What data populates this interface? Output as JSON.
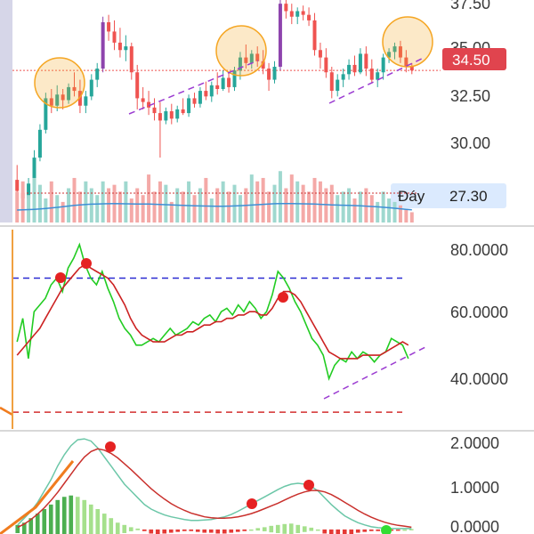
{
  "colors": {
    "up": "#26a69a",
    "down": "#ef5350",
    "price_line": "#ef5350",
    "ma": "#3d8fd6",
    "rsi": "#22cc22",
    "rsi_signal": "#cc2222",
    "macd": "#6cc7a8",
    "signal": "#c9302c",
    "trend": "#9b3bd1",
    "highlight": "#f5a623",
    "overbought": "#2b2bd1",
    "oversold": "#d32f2f",
    "current_badge": "#e0444e",
    "ma_badge": "#dbeafe"
  },
  "price_panel": {
    "ticks": [
      "37.50",
      "35.00",
      "32.50",
      "30.00"
    ],
    "current_price": "34.50",
    "ma_label": "Đáy",
    "ma_value": "27.30"
  },
  "rsi_panel": {
    "ticks": [
      "80.0000",
      "60.0000",
      "40.0000"
    ],
    "overbought": 70,
    "oversold": 30
  },
  "macd_panel": {
    "ticks": [
      "2.0000",
      "1.0000",
      "0.0000"
    ]
  },
  "chart_data": [
    {
      "type": "candlestick",
      "title": "",
      "ylim": [
        26.3,
        38.3
      ],
      "candles": [
        [
          28.6,
          29.4,
          27.0,
          28.0
        ],
        [
          27.9,
          28.4,
          27.2,
          27.6
        ],
        [
          27.6,
          28.7,
          27.0,
          28.4
        ],
        [
          28.3,
          30.2,
          28.2,
          29.8
        ],
        [
          29.8,
          31.6,
          29.6,
          31.3
        ],
        [
          31.3,
          33.3,
          31.1,
          33.0
        ],
        [
          33.0,
          33.5,
          32.2,
          32.6
        ],
        [
          32.6,
          33.7,
          32.3,
          33.2
        ],
        [
          33.2,
          33.5,
          32.4,
          32.9
        ],
        [
          32.9,
          33.8,
          32.7,
          33.6
        ],
        [
          33.6,
          34.4,
          33.1,
          33.4
        ],
        [
          33.4,
          34.0,
          32.2,
          32.6
        ],
        [
          32.6,
          33.4,
          32.2,
          33.1
        ],
        [
          33.1,
          34.3,
          32.9,
          34.0
        ],
        [
          34.0,
          34.9,
          33.6,
          34.6
        ],
        [
          34.6,
          37.4,
          34.4,
          37.1
        ],
        [
          37.1,
          37.5,
          36.1,
          36.6
        ],
        [
          36.6,
          37.2,
          35.6,
          36.0
        ],
        [
          36.0,
          36.8,
          35.2,
          35.6
        ],
        [
          35.6,
          36.4,
          35.0,
          35.8
        ],
        [
          35.8,
          36.0,
          34.0,
          34.4
        ],
        [
          34.4,
          34.8,
          32.4,
          33.0
        ],
        [
          33.0,
          33.6,
          32.4,
          32.8
        ],
        [
          32.8,
          33.4,
          32.1,
          32.5
        ],
        [
          32.5,
          33.0,
          31.8,
          32.2
        ],
        [
          32.2,
          32.8,
          29.8,
          31.8
        ],
        [
          31.8,
          32.5,
          31.6,
          32.3
        ],
        [
          32.3,
          32.7,
          31.6,
          31.9
        ],
        [
          31.9,
          32.6,
          31.7,
          32.4
        ],
        [
          32.4,
          33.0,
          32.1,
          32.2
        ],
        [
          32.2,
          33.2,
          32.0,
          33.0
        ],
        [
          33.0,
          33.3,
          32.5,
          32.7
        ],
        [
          32.7,
          33.6,
          32.5,
          33.4
        ],
        [
          33.4,
          33.9,
          32.9,
          33.1
        ],
        [
          33.1,
          33.9,
          32.8,
          33.7
        ],
        [
          33.7,
          34.4,
          33.2,
          33.5
        ],
        [
          33.5,
          34.5,
          33.4,
          34.1
        ],
        [
          34.1,
          34.4,
          33.3,
          33.6
        ],
        [
          33.6,
          34.7,
          33.4,
          34.5
        ],
        [
          34.5,
          35.5,
          34.0,
          35.2
        ],
        [
          35.2,
          35.9,
          34.6,
          34.9
        ],
        [
          34.9,
          35.6,
          34.6,
          35.4
        ],
        [
          35.4,
          35.8,
          34.7,
          35.0
        ],
        [
          35.0,
          35.6,
          34.3,
          34.6
        ],
        [
          34.6,
          34.9,
          33.4,
          34.0
        ],
        [
          34.0,
          35.0,
          33.8,
          34.7
        ],
        [
          34.7,
          38.3,
          34.5,
          38.1
        ],
        [
          38.1,
          38.4,
          37.3,
          37.7
        ],
        [
          37.7,
          38.1,
          37.0,
          37.4
        ],
        [
          37.4,
          37.9,
          37.0,
          37.7
        ],
        [
          37.7,
          38.0,
          37.2,
          37.5
        ],
        [
          37.5,
          37.9,
          36.9,
          37.2
        ],
        [
          37.2,
          37.6,
          35.3,
          35.6
        ],
        [
          35.6,
          36.0,
          34.6,
          35.2
        ],
        [
          35.2,
          35.7,
          34.1,
          34.4
        ],
        [
          34.4,
          34.7,
          33.0,
          33.4
        ],
        [
          33.4,
          34.3,
          33.1,
          34.0
        ],
        [
          34.0,
          34.6,
          33.6,
          34.3
        ],
        [
          34.3,
          35.1,
          34.0,
          34.8
        ],
        [
          34.8,
          35.3,
          34.2,
          34.4
        ],
        [
          34.4,
          35.7,
          34.3,
          35.4
        ],
        [
          35.4,
          35.8,
          34.2,
          34.6
        ],
        [
          34.6,
          35.1,
          33.8,
          34.0
        ],
        [
          34.0,
          34.6,
          33.6,
          34.4
        ],
        [
          34.4,
          35.4,
          34.0,
          35.2
        ],
        [
          35.2,
          35.7,
          34.9,
          35.5
        ],
        [
          35.5,
          36.0,
          35.1,
          35.8
        ],
        [
          35.8,
          36.1,
          34.9,
          35.2
        ],
        [
          35.2,
          35.6,
          34.4,
          34.7
        ],
        [
          34.7,
          34.9,
          34.3,
          34.5
        ]
      ],
      "current_price": 34.5
    },
    {
      "type": "bar",
      "title": "",
      "values": [
        9,
        12,
        8,
        13,
        11,
        7,
        12,
        8,
        6,
        10,
        13,
        9,
        12,
        10,
        8,
        12,
        10,
        11,
        9,
        12,
        7,
        10,
        8,
        14,
        9,
        12,
        11,
        6,
        10,
        9,
        12,
        8,
        10,
        13,
        7,
        10,
        12,
        9,
        11,
        8,
        10,
        14,
        12,
        13,
        9,
        11,
        15,
        10,
        14,
        12,
        11,
        9,
        13,
        12,
        10,
        11,
        8,
        9,
        10,
        7,
        9,
        10,
        8,
        6,
        9,
        7,
        6,
        5,
        4,
        3
      ],
      "moving_average": [
        14,
        14.3,
        14.5,
        14.8,
        15.2,
        15.8,
        16.4,
        17.0,
        17.8,
        18.5,
        19.2,
        19.8,
        20.3,
        20.6,
        20.8,
        21.0,
        21.1,
        21.2,
        21.1,
        21.0,
        20.9,
        20.8,
        20.8,
        20.7,
        20.5,
        20.3,
        20.0,
        19.7,
        19.5,
        19.3,
        19.0,
        18.8,
        18.6,
        18.5,
        18.4,
        18.3,
        18.3,
        18.4,
        18.6,
        18.9,
        19.2,
        19.6,
        20.0,
        20.4,
        20.8,
        21.1,
        21.3,
        21.3,
        21.2,
        21.1,
        21.0,
        20.9,
        20.7,
        20.4,
        20.1,
        19.8,
        19.6,
        19.4,
        19.2,
        19.0,
        18.7,
        18.4,
        18.0,
        17.6,
        17.1,
        16.6,
        16.0,
        15.4,
        14.8,
        14.2
      ],
      "label": "Đáy"
    },
    {
      "type": "line",
      "title": "",
      "ylim": [
        25,
        85
      ],
      "series": [
        {
          "values": [
            51,
            58,
            46,
            60,
            62,
            64,
            68,
            70,
            66,
            73,
            76,
            80,
            74,
            70,
            68,
            72,
            67,
            63,
            58,
            55,
            53,
            50,
            50,
            51,
            52,
            51,
            53,
            55,
            53,
            54,
            55,
            57,
            56,
            58,
            59,
            57,
            60,
            61,
            59,
            62,
            60,
            63,
            61,
            58,
            60,
            65,
            72,
            70,
            67,
            63,
            60,
            56,
            52,
            50,
            47,
            40,
            44,
            46,
            45,
            48,
            46,
            48,
            47,
            45,
            47,
            48,
            52,
            51,
            50,
            46
          ]
        },
        {
          "values": [
            47,
            49,
            51,
            53,
            55,
            58,
            61,
            64,
            67,
            69,
            71,
            73,
            74,
            73,
            72,
            71,
            70,
            68,
            65,
            62,
            58,
            55,
            53,
            52,
            51,
            51,
            51,
            52,
            53,
            53,
            54,
            54,
            55,
            56,
            56,
            57,
            57,
            58,
            58,
            59,
            59,
            60,
            60,
            59,
            59,
            61,
            64,
            66,
            66,
            65,
            63,
            60,
            57,
            54,
            51,
            48,
            47,
            46,
            46,
            46,
            46,
            47,
            47,
            47,
            47,
            48,
            49,
            50,
            51,
            50
          ]
        }
      ],
      "reference_lines": [
        70,
        30
      ]
    },
    {
      "type": "line",
      "title": "",
      "ylim": [
        -0.1,
        2.1
      ],
      "series": [
        {
          "values": [
            0.1,
            0.25,
            0.4,
            0.6,
            0.85,
            1.1,
            1.4,
            1.65,
            1.85,
            1.98,
            2.0,
            1.95,
            1.8,
            1.6,
            1.4,
            1.2,
            1.0,
            0.85,
            0.7,
            0.55,
            0.45,
            0.38,
            0.32,
            0.28,
            0.25,
            0.22,
            0.2,
            0.2,
            0.21,
            0.22,
            0.25,
            0.28,
            0.33,
            0.4,
            0.48,
            0.56,
            0.64,
            0.72,
            0.8,
            0.88,
            0.95,
            1.0,
            1.02,
            1.0,
            0.95,
            0.85,
            0.7,
            0.55,
            0.42,
            0.3,
            0.22,
            0.15,
            0.1,
            0.06,
            0.04,
            0.03,
            0.02,
            0.02,
            0.02,
            0.02
          ]
        },
        {
          "values": [
            0.05,
            0.12,
            0.22,
            0.34,
            0.48,
            0.64,
            0.82,
            1.02,
            1.22,
            1.42,
            1.6,
            1.72,
            1.78,
            1.75,
            1.68,
            1.58,
            1.45,
            1.32,
            1.18,
            1.04,
            0.9,
            0.78,
            0.67,
            0.57,
            0.49,
            0.42,
            0.36,
            0.32,
            0.28,
            0.26,
            0.25,
            0.25,
            0.26,
            0.28,
            0.31,
            0.35,
            0.4,
            0.46,
            0.52,
            0.58,
            0.65,
            0.72,
            0.78,
            0.83,
            0.86,
            0.86,
            0.83,
            0.77,
            0.69,
            0.6,
            0.51,
            0.42,
            0.34,
            0.27,
            0.21,
            0.16,
            0.12,
            0.09,
            0.07,
            0.05
          ]
        }
      ],
      "histogram": [
        0.1,
        0.15,
        0.25,
        0.35,
        0.45,
        0.55,
        0.65,
        0.72,
        0.75,
        0.72,
        0.65,
        0.55,
        0.45,
        0.35,
        0.25,
        0.15,
        0.1,
        0.05,
        0.02,
        -0.02,
        -0.05,
        -0.06,
        -0.05,
        -0.04,
        -0.03,
        -0.02,
        -0.02,
        -0.03,
        -0.04,
        -0.04,
        -0.05,
        -0.05,
        -0.04,
        -0.03,
        -0.02,
        0.0,
        0.03,
        0.05,
        0.08,
        0.1,
        0.12,
        0.13,
        0.1,
        0.07,
        0.04,
        0.0,
        -0.05,
        -0.08,
        -0.09,
        -0.08,
        -0.06,
        -0.04,
        -0.03,
        -0.02,
        -0.02,
        -0.01,
        -0.01,
        -0.01,
        0.0,
        0.01
      ]
    }
  ]
}
